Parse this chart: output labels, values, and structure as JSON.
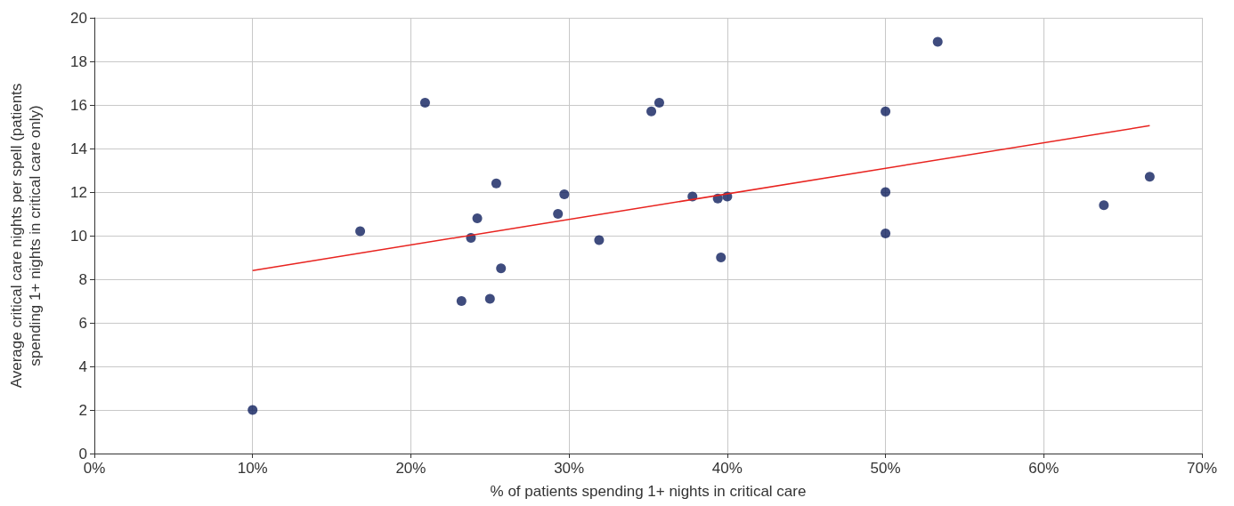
{
  "chart_data": {
    "type": "scatter",
    "xlabel": "% of patients spending 1+ nights in critical care",
    "ylabel": "Average critical care nights per spell (patients spending 1+ nights in critical care only)",
    "series": [
      {
        "color": "#0f1f5e",
        "marker": "circle",
        "x": [
          10,
          16.8,
          20.9,
          23.2,
          23.8,
          24.2,
          25.0,
          25.4,
          25.7,
          29.3,
          29.7,
          31.9,
          35.2,
          35.7,
          37.8,
          39.4,
          39.6,
          40.0,
          50,
          50,
          50,
          53.3,
          63.8,
          66.7
        ],
        "values": [
          2.0,
          10.2,
          16.1,
          7.0,
          9.9,
          10.8,
          7.1,
          12.4,
          8.5,
          11.0,
          11.9,
          9.8,
          15.7,
          16.1,
          11.8,
          11.7,
          9.0,
          11.8,
          15.7,
          12.0,
          10.1,
          18.9,
          11.4,
          12.7
        ]
      },
      {
        "type": "line",
        "color": "#e8231f",
        "marker": "none",
        "line_style": "solid",
        "x": [
          10,
          66.7
        ],
        "values": [
          8.4,
          15.05
        ]
      }
    ],
    "xlim": [
      0,
      70
    ],
    "xticks": [
      {
        "value": 0,
        "label": "0%"
      },
      {
        "value": 10,
        "label": "10%"
      },
      {
        "value": 20,
        "label": "20%"
      },
      {
        "value": 30,
        "label": "30%"
      },
      {
        "value": 40,
        "label": "40%"
      },
      {
        "value": 50,
        "label": "50%"
      },
      {
        "value": 60,
        "label": "60%"
      },
      {
        "value": 70,
        "label": "70%"
      }
    ],
    "ylim": [
      0,
      20
    ],
    "yticks": [
      0,
      2,
      4,
      6,
      8,
      10,
      12,
      14,
      16,
      18,
      20
    ],
    "grid": true
  }
}
